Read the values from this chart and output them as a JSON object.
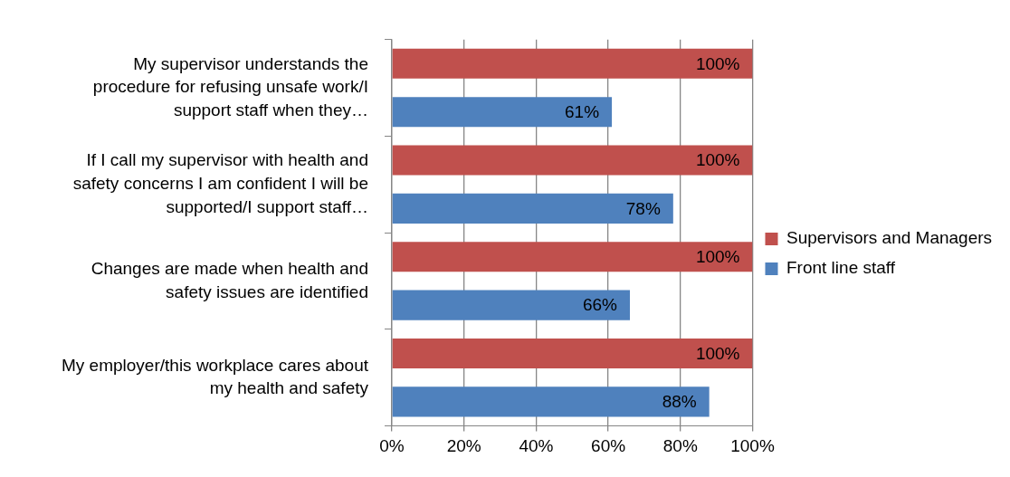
{
  "chart_data": {
    "type": "bar",
    "orientation": "horizontal",
    "categories": [
      "My supervisor understands the procedure for refusing unsafe work/I support staff when they…",
      "If I call my supervisor with health and safety concerns I am confident I will be supported/I support staff…",
      "Changes are made when health and safety issues are identified",
      "My employer/this workplace cares about my health and safety"
    ],
    "series": [
      {
        "name": "Supervisors and Managers",
        "color": "#c0504d",
        "values": [
          100,
          100,
          100,
          100
        ],
        "value_labels": [
          "100%",
          "100%",
          "100%",
          "100%"
        ]
      },
      {
        "name": "Front line staff",
        "color": "#4f81bd",
        "values": [
          61,
          78,
          66,
          88
        ],
        "value_labels": [
          "61%",
          "78%",
          "66%",
          "88%"
        ]
      }
    ],
    "xlim": [
      0,
      100
    ],
    "xticks": [
      {
        "value": 0,
        "label": "0%"
      },
      {
        "value": 20,
        "label": "20%"
      },
      {
        "value": 40,
        "label": "40%"
      },
      {
        "value": 60,
        "label": "60%"
      },
      {
        "value": 80,
        "label": "80%"
      },
      {
        "value": 100,
        "label": "100%"
      }
    ],
    "grid": "x",
    "legend": "right"
  }
}
